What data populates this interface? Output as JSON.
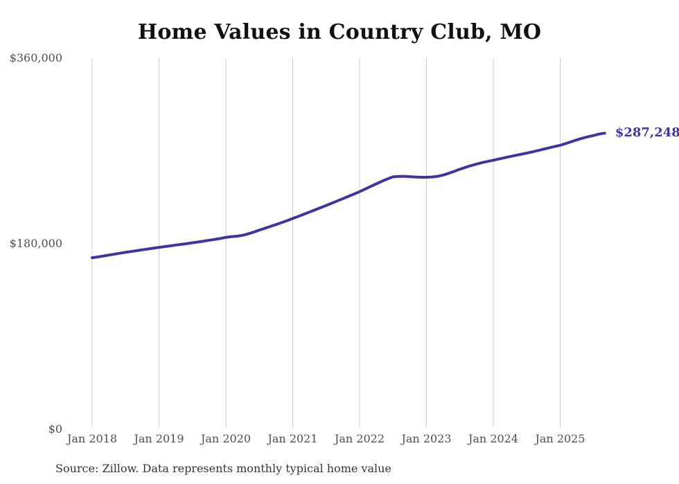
{
  "page": {
    "title": "Home Values in Country Club, MO",
    "source_note": "Source: Zillow. Data represents monthly typical home value",
    "end_value_label": "$287,248"
  },
  "colors": {
    "background": "#ffffff",
    "line": "#3c35a3",
    "gridline": "#cccccc",
    "axis_text": "#4d4d4d",
    "title_text": "#111111",
    "end_label_text": "#3c35a3",
    "source_text": "#333333"
  },
  "chart_data": {
    "type": "line",
    "title": "Home Values in Country Club, MO",
    "xlabel": "",
    "ylabel": "",
    "grid": "vertical-only",
    "legend": false,
    "ylim": [
      0,
      360000
    ],
    "y_ticks": [
      {
        "value": 0,
        "label": "$0"
      },
      {
        "value": 180000,
        "label": "$180,000"
      },
      {
        "value": 360000,
        "label": "$360,000"
      }
    ],
    "x_tick_labels": [
      "Jan 2018",
      "Jan 2019",
      "Jan 2020",
      "Jan 2021",
      "Jan 2022",
      "Jan 2023",
      "Jan 2024",
      "Jan 2025"
    ],
    "series": [
      {
        "name": "Monthly typical home value",
        "start_month": "2018-01",
        "end_month": "2025-09",
        "frequency": "monthly",
        "values": [
          166400,
          167200,
          168100,
          169000,
          169900,
          170800,
          171700,
          172500,
          173300,
          174100,
          174900,
          175700,
          176500,
          177200,
          177900,
          178700,
          179400,
          180100,
          180900,
          181700,
          182500,
          183400,
          184200,
          185100,
          186200,
          186900,
          187300,
          188200,
          189600,
          191300,
          193200,
          195000,
          196800,
          198600,
          200500,
          202400,
          204500,
          206500,
          208600,
          210700,
          212800,
          215000,
          217100,
          219300,
          221500,
          223700,
          226000,
          228200,
          230500,
          233000,
          235600,
          238100,
          240600,
          242900,
          244900,
          245300,
          245400,
          245100,
          244700,
          244500,
          244500,
          244700,
          245400,
          246600,
          248300,
          250300,
          252300,
          254100,
          255800,
          257300,
          258700,
          259900,
          261000,
          262200,
          263400,
          264600,
          265700,
          266800,
          267900,
          269100,
          270400,
          271700,
          273000,
          274300,
          275500,
          277200,
          279000,
          280800,
          282400,
          283800,
          285000,
          286400,
          287248
        ]
      }
    ],
    "end_annotation": {
      "date": "2025-09",
      "value": 287248,
      "label": "$287,248"
    }
  }
}
